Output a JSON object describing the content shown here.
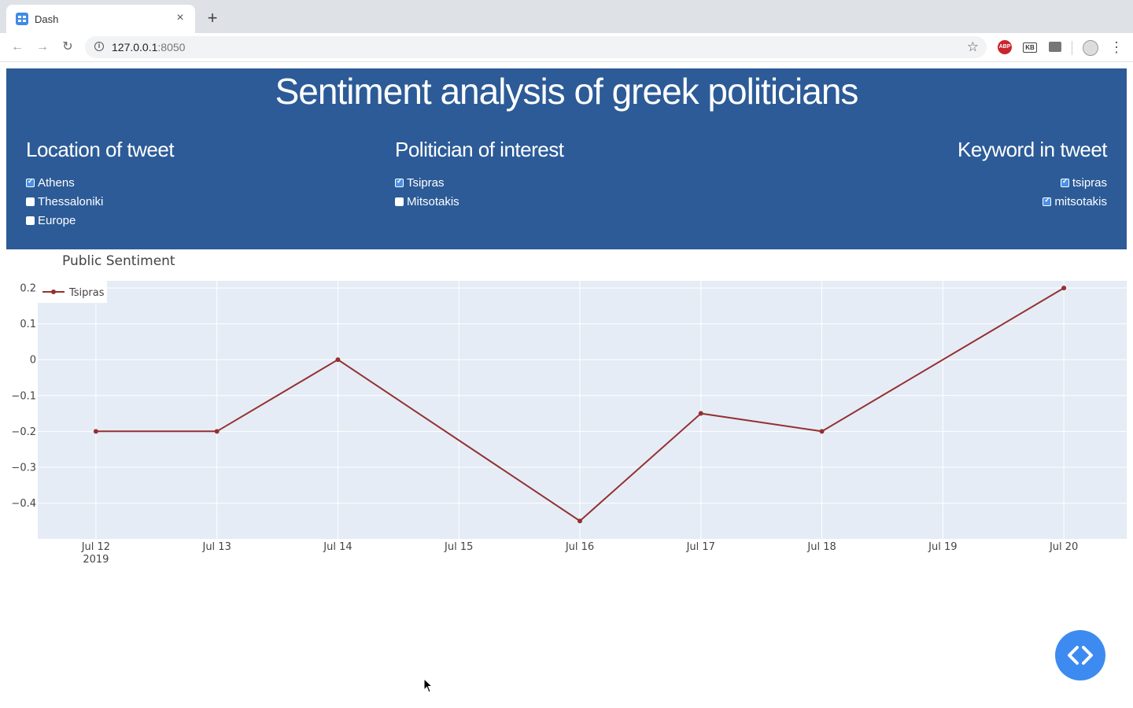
{
  "browser": {
    "tab_title": "Dash",
    "tab_close": "×",
    "new_tab": "+",
    "url_host": "127.0.0.1",
    "url_port": ":8050",
    "back": "←",
    "forward": "→",
    "reload": "↻",
    "star": "☆",
    "ext_abp": "ABP",
    "ext_kb": "KB",
    "menu": "⋮",
    "info": "i"
  },
  "header": {
    "title": "Sentiment analysis of greek politicians",
    "location": {
      "heading": "Location of tweet",
      "options": [
        {
          "label": "Athens",
          "checked": true
        },
        {
          "label": "Thessaloniki",
          "checked": false
        },
        {
          "label": "Europe",
          "checked": false
        }
      ]
    },
    "politician": {
      "heading": "Politician of interest",
      "options": [
        {
          "label": "Tsipras",
          "checked": true
        },
        {
          "label": "Mitsotakis",
          "checked": false
        }
      ]
    },
    "keyword": {
      "heading": "Keyword in tweet",
      "options": [
        {
          "label": "tsipras",
          "checked": true
        },
        {
          "label": "mitsotakis",
          "checked": true
        }
      ]
    }
  },
  "chart_data": {
    "type": "line",
    "title": "Public Sentiment",
    "xlabel": "",
    "ylabel": "",
    "x": [
      "Jul 12",
      "Jul 13",
      "Jul 14",
      "Jul 16",
      "Jul 17",
      "Jul 18",
      "Jul 20"
    ],
    "x_dates": [
      "2019-07-12",
      "2019-07-13",
      "2019-07-14",
      "2019-07-16",
      "2019-07-17",
      "2019-07-18",
      "2019-07-20"
    ],
    "x_ticks": [
      "Jul 12",
      "Jul 13",
      "Jul 14",
      "Jul 15",
      "Jul 16",
      "Jul 17",
      "Jul 18",
      "Jul 19",
      "Jul 20"
    ],
    "x_tick_dates": [
      "2019-07-12",
      "2019-07-13",
      "2019-07-14",
      "2019-07-15",
      "2019-07-16",
      "2019-07-17",
      "2019-07-18",
      "2019-07-19",
      "2019-07-20"
    ],
    "x_year_label": "2019",
    "y_ticks": [
      0.2,
      0.1,
      0,
      -0.1,
      -0.2,
      -0.3,
      -0.4
    ],
    "y_tick_labels": [
      "0.2",
      "0.1",
      "0",
      "−0.1",
      "−0.2",
      "−0.3",
      "−0.4"
    ],
    "ylim": [
      -0.5,
      0.22
    ],
    "xlim": [
      "2019-07-11T12:28",
      "2019-07-20T12:28"
    ],
    "grid": true,
    "legend": "top-left",
    "series": [
      {
        "name": "Tsipras",
        "color": "#943131",
        "values": [
          -0.2,
          -0.2,
          0,
          -0.45,
          -0.15,
          -0.2,
          0.2
        ]
      }
    ]
  }
}
